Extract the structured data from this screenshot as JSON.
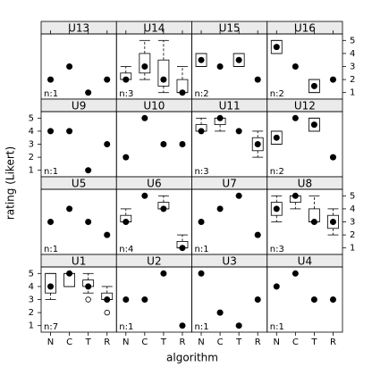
{
  "chart_data": {
    "type": "box",
    "xlabel": "algorithm",
    "ylabel": "rating (Likert)",
    "categories": [
      "N",
      "C",
      "T",
      "R"
    ],
    "ylim": [
      0.5,
      5.5
    ],
    "yticks": [
      1,
      2,
      3,
      4,
      5
    ],
    "panels": [
      {
        "title": "U13",
        "n_label": "n:1",
        "boxes": [
          {
            "median": 2
          },
          {
            "median": 3
          },
          {
            "median": 1
          },
          {
            "median": 2
          }
        ]
      },
      {
        "title": "U14",
        "n_label": "n:3",
        "boxes": [
          {
            "low": 2,
            "q1": 2,
            "median": 2,
            "q3": 2.5,
            "high": 3
          },
          {
            "low": 2,
            "q1": 2.5,
            "median": 3,
            "q3": 4,
            "high": 5
          },
          {
            "low": 1,
            "q1": 1.5,
            "median": 2,
            "q3": 3.5,
            "high": 5
          },
          {
            "low": 1,
            "q1": 1,
            "median": 1,
            "q3": 2,
            "high": 3
          }
        ]
      },
      {
        "title": "U15",
        "n_label": "n:2",
        "boxes": [
          {
            "low": 3,
            "q1": 3,
            "median": 3.5,
            "q3": 4,
            "high": 4
          },
          {
            "median": 3
          },
          {
            "low": 3,
            "q1": 3,
            "median": 3.5,
            "q3": 4,
            "high": 4
          },
          {
            "median": 2
          }
        ]
      },
      {
        "title": "U16",
        "n_label": "n:2",
        "boxes": [
          {
            "low": 4,
            "q1": 4,
            "median": 4.5,
            "q3": 5,
            "high": 5
          },
          {
            "median": 3
          },
          {
            "low": 1,
            "q1": 1,
            "median": 1.5,
            "q3": 2,
            "high": 2
          },
          {
            "median": 2
          }
        ]
      },
      {
        "title": "U9",
        "n_label": "n:1",
        "boxes": [
          {
            "median": 4
          },
          {
            "median": 4
          },
          {
            "median": 1
          },
          {
            "median": 3
          }
        ]
      },
      {
        "title": "U10",
        "boxes": [
          {
            "median": 2
          },
          {
            "median": 5
          },
          {
            "median": 3
          },
          {
            "median": 3
          }
        ]
      },
      {
        "title": "U11",
        "n_label": "n:3",
        "boxes": [
          {
            "low": 4,
            "q1": 4,
            "median": 4,
            "q3": 4.5,
            "high": 5
          },
          {
            "low": 4,
            "q1": 4.5,
            "median": 5,
            "q3": 5,
            "high": 5
          },
          {
            "median": 4
          },
          {
            "low": 2,
            "q1": 2.5,
            "median": 3,
            "q3": 3.5,
            "high": 4
          }
        ]
      },
      {
        "title": "U12",
        "n_label": "n:2",
        "boxes": [
          {
            "low": 3,
            "q1": 3,
            "median": 3.5,
            "q3": 4,
            "high": 4
          },
          {
            "median": 5
          },
          {
            "low": 4,
            "q1": 4,
            "median": 4.5,
            "q3": 5,
            "high": 5
          },
          {
            "median": 2
          }
        ]
      },
      {
        "title": "U5",
        "n_label": "n:1",
        "boxes": [
          {
            "median": 3
          },
          {
            "median": 4
          },
          {
            "median": 3
          },
          {
            "median": 2
          }
        ]
      },
      {
        "title": "U6",
        "n_label": "n:4",
        "boxes": [
          {
            "low": 3,
            "q1": 3,
            "median": 3,
            "q3": 3.5,
            "high": 4
          },
          {
            "median": 5
          },
          {
            "low": 4,
            "q1": 4,
            "median": 4,
            "q3": 4.5,
            "high": 5
          },
          {
            "low": 1,
            "q1": 1,
            "median": 1,
            "q3": 1.5,
            "high": 2
          }
        ]
      },
      {
        "title": "U7",
        "n_label": "n:1",
        "boxes": [
          {
            "median": 3
          },
          {
            "median": 4
          },
          {
            "median": 5
          },
          {
            "median": 2
          }
        ]
      },
      {
        "title": "U8",
        "n_label": "n:3",
        "boxes": [
          {
            "low": 3,
            "q1": 3.5,
            "median": 4,
            "q3": 4.5,
            "high": 5
          },
          {
            "low": 4,
            "q1": 4.5,
            "median": 5,
            "q3": 5,
            "high": 5
          },
          {
            "low": 3,
            "q1": 3,
            "median": 3,
            "q3": 4,
            "high": 5
          },
          {
            "low": 2,
            "q1": 2.5,
            "median": 3,
            "q3": 3.5,
            "high": 4
          }
        ]
      },
      {
        "title": "U1",
        "n_label": "n:7",
        "boxes": [
          {
            "low": 3,
            "q1": 3.5,
            "median": 4,
            "q3": 5,
            "high": 5
          },
          {
            "low": 4,
            "q1": 4,
            "median": 5,
            "q3": 5,
            "high": 5
          },
          {
            "low": 3.5,
            "q1": 4,
            "median": 4,
            "q3": 4.5,
            "high": 5,
            "outliers": [
              3
            ]
          },
          {
            "low": 3,
            "q1": 3,
            "median": 3,
            "q3": 3.5,
            "high": 4,
            "outliers": [
              2
            ]
          }
        ]
      },
      {
        "title": "U2",
        "n_label": "n:1",
        "boxes": [
          {
            "median": 3
          },
          {
            "median": 3
          },
          {
            "median": 5
          },
          {
            "median": 1
          }
        ]
      },
      {
        "title": "U3",
        "n_label": "n:1",
        "boxes": [
          {
            "median": 5
          },
          {
            "median": 2
          },
          {
            "median": 1
          },
          {
            "median": 3
          }
        ]
      },
      {
        "title": "U4",
        "n_label": "n:1",
        "boxes": [
          {
            "median": 4
          },
          {
            "median": 5
          },
          {
            "median": 3
          },
          {
            "median": 3
          }
        ]
      }
    ]
  }
}
